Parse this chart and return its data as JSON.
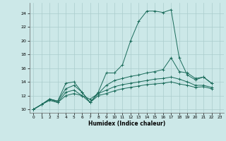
{
  "xlabel": "Humidex (Indice chaleur)",
  "xlim": [
    -0.5,
    23.5
  ],
  "ylim": [
    9.5,
    25.5
  ],
  "yticks": [
    10,
    12,
    14,
    16,
    18,
    20,
    22,
    24
  ],
  "xticks": [
    0,
    1,
    2,
    3,
    4,
    5,
    6,
    7,
    8,
    9,
    10,
    11,
    12,
    13,
    14,
    15,
    16,
    17,
    18,
    19,
    20,
    21,
    22,
    23
  ],
  "bg_color": "#cce8e8",
  "grid_color": "#aacccc",
  "line_color": "#1a6b5a",
  "lines": [
    {
      "x": [
        0,
        1,
        2,
        3,
        4,
        5,
        6,
        7,
        8,
        9,
        10,
        11,
        12,
        13,
        14,
        15,
        16,
        17,
        18,
        19,
        20,
        21,
        22
      ],
      "y": [
        10,
        10.7,
        11.5,
        11.2,
        13.8,
        14.0,
        12.5,
        11.0,
        12.5,
        15.3,
        15.3,
        16.5,
        20.0,
        22.8,
        24.3,
        24.3,
        24.1,
        24.5,
        17.5,
        15.0,
        14.3,
        14.7,
        13.8
      ]
    },
    {
      "x": [
        0,
        1,
        2,
        3,
        4,
        5,
        6,
        7,
        8,
        9,
        10,
        11,
        12,
        13,
        14,
        15,
        16,
        17,
        18,
        19,
        20,
        21,
        22
      ],
      "y": [
        10,
        10.7,
        11.5,
        11.2,
        13.0,
        13.5,
        12.5,
        11.0,
        12.3,
        13.5,
        14.2,
        14.5,
        14.8,
        15.0,
        15.3,
        15.5,
        15.8,
        17.5,
        15.5,
        15.3,
        14.5,
        14.7,
        13.8
      ]
    },
    {
      "x": [
        0,
        1,
        2,
        3,
        4,
        5,
        6,
        7,
        8,
        9,
        10,
        11,
        12,
        13,
        14,
        15,
        16,
        17,
        18,
        19,
        20,
        21,
        22
      ],
      "y": [
        10,
        10.7,
        11.3,
        11.0,
        12.0,
        12.3,
        12.0,
        11.0,
        12.0,
        12.3,
        12.7,
        13.0,
        13.2,
        13.4,
        13.6,
        13.7,
        13.8,
        14.0,
        13.7,
        13.5,
        13.2,
        13.3,
        13.0
      ]
    },
    {
      "x": [
        0,
        1,
        2,
        3,
        4,
        5,
        6,
        7,
        8,
        9,
        10,
        11,
        12,
        13,
        14,
        15,
        16,
        17,
        18,
        19,
        20,
        21,
        22
      ],
      "y": [
        10,
        10.7,
        11.5,
        11.0,
        12.5,
        12.8,
        12.0,
        11.5,
        12.3,
        12.8,
        13.3,
        13.6,
        13.8,
        14.0,
        14.2,
        14.4,
        14.5,
        14.7,
        14.4,
        14.0,
        13.5,
        13.5,
        13.2
      ]
    }
  ]
}
